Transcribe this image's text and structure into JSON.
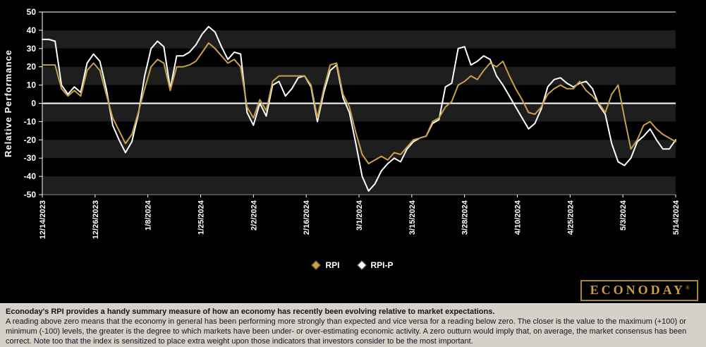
{
  "chart_data": {
    "type": "line",
    "title": "",
    "ylabel": "Relative Performance",
    "xlabel": "",
    "ylim": [
      -50,
      50
    ],
    "ytick_step": 10,
    "ytick_labels": [
      "50",
      "40",
      "30",
      "20",
      "10",
      "0",
      "-10",
      "-20",
      "-30",
      "-40",
      "-50"
    ],
    "grid": "horizontal-bands",
    "legend_position": "bottom-center",
    "x_labels": [
      "12/14/2023",
      "12/26/2023",
      "1/8/2024",
      "1/25/2024",
      "2/2/2024",
      "2/16/2024",
      "3/1/2024",
      "3/15/2024",
      "3/28/2024",
      "4/10/2024",
      "4/25/2024",
      "5/3/2024",
      "5/14/2024"
    ],
    "series": [
      {
        "name": "RPI",
        "color": "#C8A04A",
        "values": [
          21,
          21,
          21,
          8,
          4,
          7,
          4,
          18,
          22,
          18,
          5,
          -8,
          -15,
          -22,
          -17,
          -5,
          8,
          20,
          24,
          22,
          7,
          20,
          20,
          21,
          23,
          28,
          33,
          30,
          26,
          22,
          24,
          20,
          -2,
          -8,
          2,
          -4,
          12,
          15,
          15,
          15,
          15,
          15,
          10,
          -8,
          8,
          21,
          22,
          5,
          -2,
          -16,
          -28,
          -33,
          -31,
          -29,
          -31,
          -27,
          -28,
          -24,
          -20,
          -19,
          -18,
          -10,
          -8,
          -2,
          1,
          10,
          12,
          15,
          13,
          18,
          22,
          20,
          23,
          15,
          8,
          2,
          -5,
          -6,
          -2,
          5,
          8,
          10,
          8,
          8,
          12,
          7,
          4,
          0,
          -5,
          5,
          10,
          -8,
          -25,
          -20,
          -12,
          -10,
          -14,
          -17,
          -19,
          -21
        ]
      },
      {
        "name": "RPI-P",
        "color": "#FFFFFF",
        "values": [
          35,
          35,
          34,
          10,
          5,
          9,
          6,
          22,
          27,
          23,
          8,
          -12,
          -20,
          -27,
          -21,
          -6,
          15,
          30,
          34,
          31,
          8,
          26,
          26,
          28,
          32,
          38,
          42,
          39,
          31,
          24,
          28,
          27,
          -5,
          -12,
          0,
          -7,
          10,
          12,
          4,
          8,
          14,
          15,
          9,
          -10,
          6,
          18,
          21,
          3,
          -5,
          -22,
          -40,
          -48,
          -44,
          -37,
          -33,
          -30,
          -32,
          -25,
          -21,
          -19,
          -18,
          -11,
          -9,
          9,
          11,
          30,
          31,
          21,
          23,
          26,
          24,
          15,
          10,
          4,
          -2,
          -8,
          -14,
          -11,
          -3,
          9,
          13,
          14,
          11,
          9,
          11,
          12,
          8,
          -1,
          -6,
          -22,
          -32,
          -34,
          -30,
          -21,
          -18,
          -14,
          -20,
          -25,
          -25,
          -20
        ]
      }
    ],
    "colors": {
      "background": "#000000",
      "band": "#000000",
      "band_alt": "#1E1E1E",
      "zero_line": "#FFFFFF",
      "axis": "#FFFFFF",
      "tick_text": "#FFFFFF"
    }
  },
  "branding": {
    "logo_text": "ECONODAY",
    "registered": "®"
  },
  "footer": {
    "headline": "Econoday's RPI provides a handy summary measure of how an economy has recently been evolving relative to market expectations.",
    "body": "A reading above zero means that the economy in general has been performing more strongly than expected and vice versa for a reading below zero. The closer is the value to the maximum (+100) or minimum (-100) levels, the greater is the degree to which markets have been under- or over-estimating economic activity. A zero outturn would imply that, on average, the market consensus has been correct. Note too that the index is sensitized to place extra weight upon those indicators that investors consider to be the most important."
  }
}
